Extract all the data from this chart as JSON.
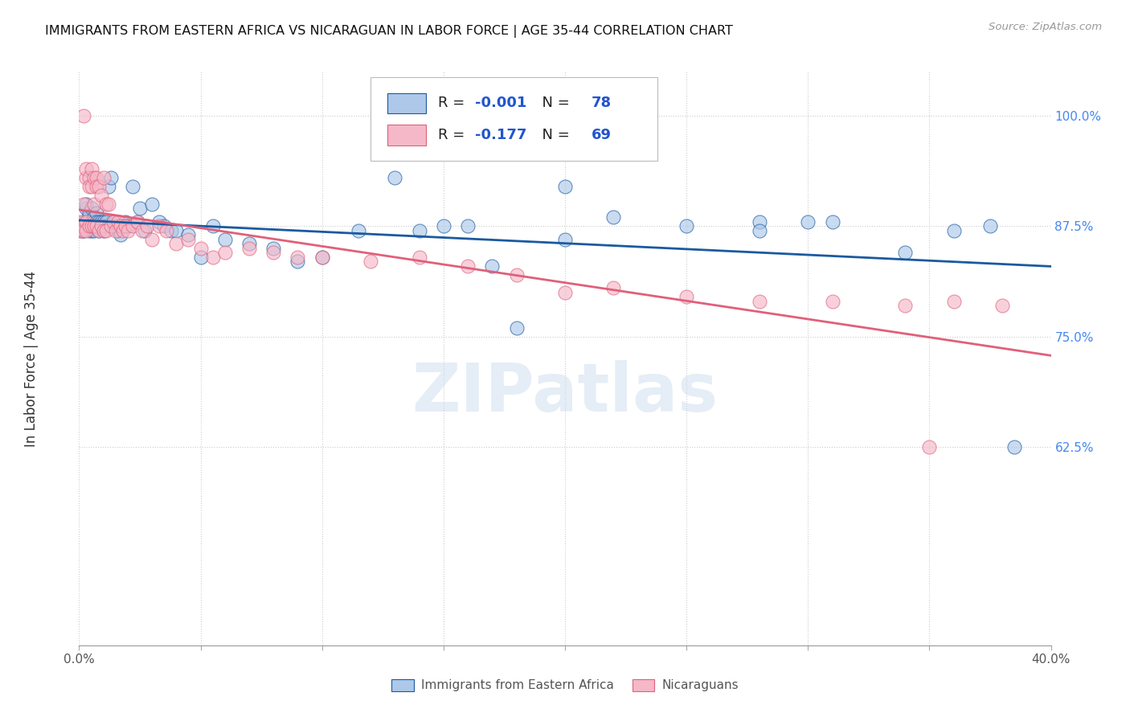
{
  "title": "IMMIGRANTS FROM EASTERN AFRICA VS NICARAGUAN IN LABOR FORCE | AGE 35-44 CORRELATION CHART",
  "source": "Source: ZipAtlas.com",
  "ylabel": "In Labor Force | Age 35-44",
  "xlim": [
    0.0,
    0.4
  ],
  "ylim": [
    0.4,
    1.05
  ],
  "xticks": [
    0.0,
    0.05,
    0.1,
    0.15,
    0.2,
    0.25,
    0.3,
    0.35,
    0.4
  ],
  "xticklabels": [
    "0.0%",
    "",
    "",
    "",
    "",
    "",
    "",
    "",
    "40.0%"
  ],
  "yticks": [
    0.625,
    0.75,
    0.875,
    1.0
  ],
  "yticklabels": [
    "62.5%",
    "75.0%",
    "87.5%",
    "100.0%"
  ],
  "legend_labels": [
    "Immigrants from Eastern Africa",
    "Nicaraguans"
  ],
  "legend_R": [
    "-0.001",
    "-0.177"
  ],
  "legend_N": [
    "78",
    "69"
  ],
  "blue_color": "#adc8e8",
  "pink_color": "#f5b8c8",
  "blue_line_color": "#1a5aa0",
  "pink_line_color": "#e0607a",
  "watermark": "ZIPatlas",
  "blue_x": [
    0.001,
    0.001,
    0.002,
    0.002,
    0.002,
    0.003,
    0.003,
    0.003,
    0.003,
    0.004,
    0.004,
    0.004,
    0.004,
    0.005,
    0.005,
    0.005,
    0.005,
    0.006,
    0.006,
    0.006,
    0.006,
    0.007,
    0.007,
    0.007,
    0.008,
    0.008,
    0.008,
    0.009,
    0.009,
    0.01,
    0.01,
    0.011,
    0.011,
    0.012,
    0.013,
    0.014,
    0.015,
    0.016,
    0.017,
    0.018,
    0.019,
    0.02,
    0.022,
    0.024,
    0.025,
    0.027,
    0.03,
    0.033,
    0.035,
    0.038,
    0.04,
    0.045,
    0.05,
    0.055,
    0.06,
    0.07,
    0.08,
    0.09,
    0.1,
    0.115,
    0.13,
    0.15,
    0.17,
    0.2,
    0.22,
    0.25,
    0.28,
    0.31,
    0.34,
    0.36,
    0.375,
    0.385,
    0.3,
    0.28,
    0.2,
    0.18,
    0.16,
    0.14
  ],
  "blue_y": [
    0.875,
    0.87,
    0.875,
    0.88,
    0.87,
    0.895,
    0.9,
    0.88,
    0.875,
    0.885,
    0.89,
    0.875,
    0.87,
    0.88,
    0.875,
    0.895,
    0.87,
    0.885,
    0.875,
    0.88,
    0.87,
    0.89,
    0.88,
    0.875,
    0.88,
    0.875,
    0.87,
    0.88,
    0.875,
    0.87,
    0.88,
    0.875,
    0.88,
    0.92,
    0.93,
    0.88,
    0.875,
    0.87,
    0.865,
    0.875,
    0.88,
    0.875,
    0.92,
    0.88,
    0.895,
    0.87,
    0.9,
    0.88,
    0.875,
    0.87,
    0.87,
    0.865,
    0.84,
    0.875,
    0.86,
    0.855,
    0.85,
    0.835,
    0.84,
    0.87,
    0.93,
    0.875,
    0.83,
    0.86,
    0.885,
    0.875,
    0.88,
    0.88,
    0.845,
    0.87,
    0.875,
    0.625,
    0.88,
    0.87,
    0.92,
    0.76,
    0.875,
    0.87
  ],
  "pink_x": [
    0.001,
    0.001,
    0.001,
    0.002,
    0.002,
    0.002,
    0.002,
    0.003,
    0.003,
    0.003,
    0.003,
    0.004,
    0.004,
    0.004,
    0.005,
    0.005,
    0.005,
    0.006,
    0.006,
    0.006,
    0.007,
    0.007,
    0.007,
    0.008,
    0.008,
    0.009,
    0.009,
    0.01,
    0.01,
    0.011,
    0.011,
    0.012,
    0.013,
    0.014,
    0.015,
    0.016,
    0.017,
    0.018,
    0.019,
    0.02,
    0.022,
    0.024,
    0.026,
    0.028,
    0.03,
    0.033,
    0.036,
    0.04,
    0.045,
    0.05,
    0.055,
    0.06,
    0.07,
    0.08,
    0.09,
    0.1,
    0.12,
    0.14,
    0.16,
    0.18,
    0.2,
    0.22,
    0.25,
    0.28,
    0.31,
    0.34,
    0.36,
    0.38,
    0.35
  ],
  "pink_y": [
    0.88,
    0.875,
    0.87,
    1.0,
    0.875,
    0.9,
    0.87,
    0.93,
    0.94,
    0.88,
    0.87,
    0.93,
    0.92,
    0.875,
    0.94,
    0.92,
    0.875,
    0.93,
    0.9,
    0.875,
    0.93,
    0.92,
    0.875,
    0.92,
    0.87,
    0.91,
    0.875,
    0.93,
    0.87,
    0.9,
    0.87,
    0.9,
    0.875,
    0.88,
    0.87,
    0.88,
    0.875,
    0.87,
    0.875,
    0.87,
    0.875,
    0.88,
    0.87,
    0.875,
    0.86,
    0.875,
    0.87,
    0.855,
    0.86,
    0.85,
    0.84,
    0.845,
    0.85,
    0.845,
    0.84,
    0.84,
    0.835,
    0.84,
    0.83,
    0.82,
    0.8,
    0.805,
    0.795,
    0.79,
    0.79,
    0.785,
    0.79,
    0.785,
    0.625
  ]
}
